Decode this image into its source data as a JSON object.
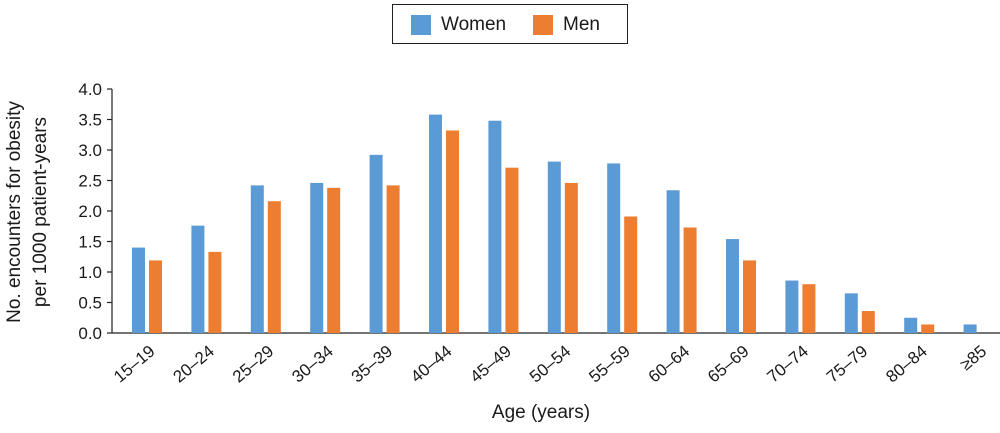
{
  "chart_data": {
    "type": "bar",
    "title": "",
    "xlabel": "Age (years)",
    "ylabel_lines": [
      "No. encounters for obesity",
      "per 1000 patient-years"
    ],
    "ylim": [
      0,
      4.0
    ],
    "yticks": [
      "0.0",
      "0.5",
      "1.0",
      "1.5",
      "2.0",
      "2.5",
      "3.0",
      "3.5",
      "4.0"
    ],
    "categories": [
      "15–19",
      "20–24",
      "25–29",
      "30–34",
      "35–39",
      "40–44",
      "45–49",
      "50–54",
      "55–59",
      "60–64",
      "65–69",
      "70–74",
      "75–79",
      "80–84",
      "≥85"
    ],
    "series": [
      {
        "name": "Women",
        "color": "#5b9bd5",
        "values": [
          1.4,
          1.76,
          2.42,
          2.46,
          2.92,
          3.58,
          3.48,
          2.81,
          2.78,
          2.34,
          1.54,
          0.86,
          0.65,
          0.25,
          0.14
        ]
      },
      {
        "name": "Men",
        "color": "#ed7d31",
        "values": [
          1.19,
          1.33,
          2.16,
          2.38,
          2.42,
          3.32,
          2.71,
          2.46,
          1.91,
          1.73,
          1.19,
          0.8,
          0.36,
          0.14,
          0.0
        ]
      }
    ],
    "grid": false,
    "legend_position": "top-center"
  }
}
